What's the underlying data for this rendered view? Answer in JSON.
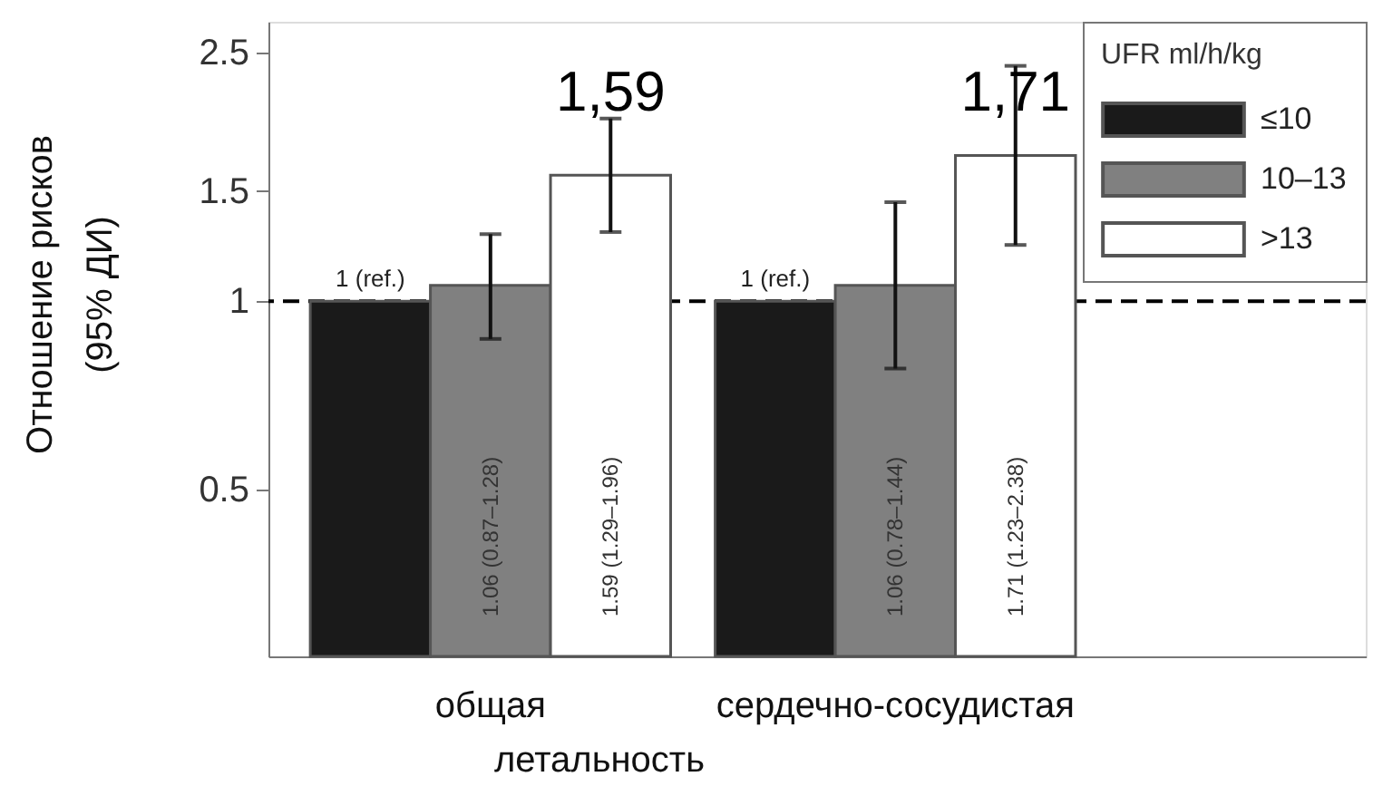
{
  "chart_data": {
    "type": "bar",
    "categories": [
      "общая",
      "сердечно-сосудистая"
    ],
    "xlabel": "летальность",
    "ylabel": "Отношение рисков\n(95% ДИ)",
    "legend_title": "UFR ml/h/kg",
    "series": [
      {
        "name": "≤10",
        "color": "#1a1a1a",
        "values": [
          1,
          1
        ],
        "value_labels": [
          "1 (ref.)",
          "1 (ref.)"
        ]
      },
      {
        "name": "10–13",
        "color": "#808080",
        "values": [
          1.06,
          1.06
        ],
        "errors": [
          [
            0.87,
            1.28
          ],
          [
            0.78,
            1.44
          ]
        ],
        "value_labels": [
          "1.06 (0.87–1.28)",
          "1.06 (0.78–1.44)"
        ]
      },
      {
        "name": ">13",
        "color": "#ffffff",
        "values": [
          1.59,
          1.71
        ],
        "errors": [
          [
            1.29,
            1.96
          ],
          [
            1.23,
            2.38
          ]
        ],
        "value_labels": [
          "1.59 (1.29–1.96)",
          "1.71 (1.23–2.38)"
        ]
      }
    ],
    "log": true,
    "ylim": [
      0.27,
      2.8
    ],
    "yticks": [
      0.5,
      1,
      1.5,
      2.5
    ],
    "ref_lines": [
      {
        "axis": "y",
        "value": 1,
        "color": "#000000",
        "line_style": "dashed"
      }
    ],
    "annotations": [
      "1,59",
      "1,71"
    ],
    "legend": "top right",
    "grid": false
  }
}
